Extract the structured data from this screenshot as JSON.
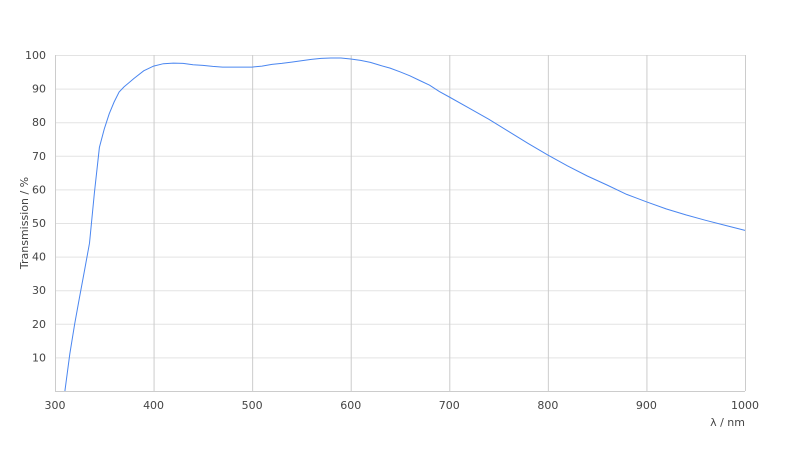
{
  "chart_data": {
    "type": "line",
    "title": "",
    "xlabel": "λ / nm",
    "ylabel": "Transmission / %",
    "xlim": [
      300,
      1000
    ],
    "ylim": [
      0,
      100
    ],
    "x_ticks": [
      300,
      400,
      500,
      600,
      700,
      800,
      900,
      1000
    ],
    "y_ticks": [
      10,
      20,
      30,
      40,
      50,
      60,
      70,
      80,
      90,
      100
    ],
    "grid": true,
    "legend": "none",
    "colors": {
      "line": "#4a86f0",
      "vgrid": "#cccccc",
      "hgrid": "#e3e3e3"
    },
    "series": [
      {
        "x": [
          310,
          315,
          320,
          325,
          330,
          335,
          340,
          345,
          350,
          355,
          360,
          365,
          370,
          380,
          390,
          400,
          410,
          420,
          430,
          440,
          450,
          460,
          470,
          480,
          490,
          500,
          510,
          520,
          530,
          540,
          550,
          560,
          570,
          580,
          590,
          600,
          610,
          620,
          630,
          640,
          650,
          660,
          670,
          680,
          690,
          700,
          720,
          740,
          760,
          780,
          800,
          820,
          840,
          860,
          880,
          900,
          920,
          940,
          960,
          980,
          1000
        ],
        "y": [
          0,
          11,
          20,
          28,
          36,
          44,
          59,
          72.5,
          78,
          82.5,
          86,
          89,
          90.5,
          93,
          95.3,
          96.7,
          97.4,
          97.6,
          97.5,
          97.1,
          96.9,
          96.6,
          96.4,
          96.4,
          96.4,
          96.4,
          96.7,
          97.2,
          97.5,
          97.9,
          98.3,
          98.7,
          99,
          99.1,
          99.1,
          98.8,
          98.4,
          97.8,
          96.9,
          96.1,
          95,
          93.8,
          92.4,
          91,
          89.1,
          87.5,
          84.2,
          80.9,
          77.3,
          73.7,
          70.2,
          67,
          64,
          61.3,
          58.5,
          56.3,
          54.2,
          52.4,
          50.8,
          49.3,
          47.8
        ]
      }
    ]
  }
}
